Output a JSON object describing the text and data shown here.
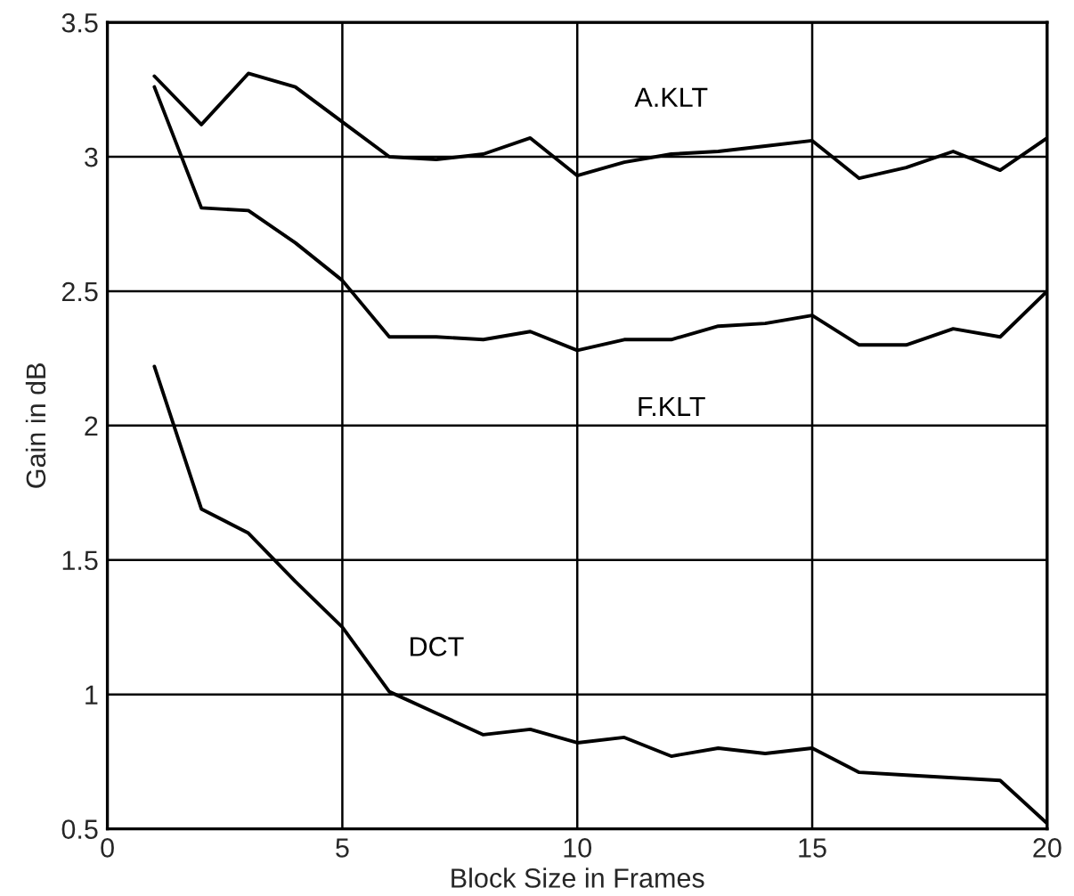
{
  "chart_data": {
    "type": "line",
    "xlabel": "Block Size in Frames",
    "ylabel": "Gain in dB",
    "x": [
      1,
      2,
      3,
      4,
      5,
      6,
      7,
      8,
      9,
      10,
      11,
      12,
      13,
      14,
      15,
      16,
      17,
      18,
      19,
      20
    ],
    "series": [
      {
        "name": "A.KLT",
        "color": "#000000",
        "values": [
          3.3,
          3.12,
          3.31,
          3.26,
          3.13,
          3.0,
          2.99,
          3.01,
          3.07,
          2.93,
          2.98,
          3.01,
          3.02,
          3.04,
          3.06,
          2.92,
          2.96,
          3.02,
          2.95,
          3.07
        ]
      },
      {
        "name": "F.KLT",
        "color": "#000000",
        "values": [
          3.26,
          2.81,
          2.8,
          2.68,
          2.54,
          2.33,
          2.33,
          2.32,
          2.35,
          2.28,
          2.32,
          2.32,
          2.37,
          2.38,
          2.41,
          2.3,
          2.3,
          2.36,
          2.33,
          2.5
        ]
      },
      {
        "name": "DCT",
        "color": "#000000",
        "values": [
          2.22,
          1.69,
          1.6,
          1.42,
          1.25,
          1.01,
          0.93,
          0.85,
          0.87,
          0.82,
          0.84,
          0.77,
          0.8,
          0.78,
          0.8,
          0.71,
          0.7,
          0.69,
          0.68,
          0.52
        ]
      }
    ],
    "xlim": [
      0,
      20
    ],
    "xticks": [
      0,
      5,
      10,
      15,
      20
    ],
    "ylim": [
      0.5,
      3.5
    ],
    "yticks": [
      0.5,
      1,
      1.5,
      2,
      2.5,
      3,
      3.5
    ],
    "grid": true,
    "legend": false,
    "marker": "none",
    "line_style": "solid"
  }
}
